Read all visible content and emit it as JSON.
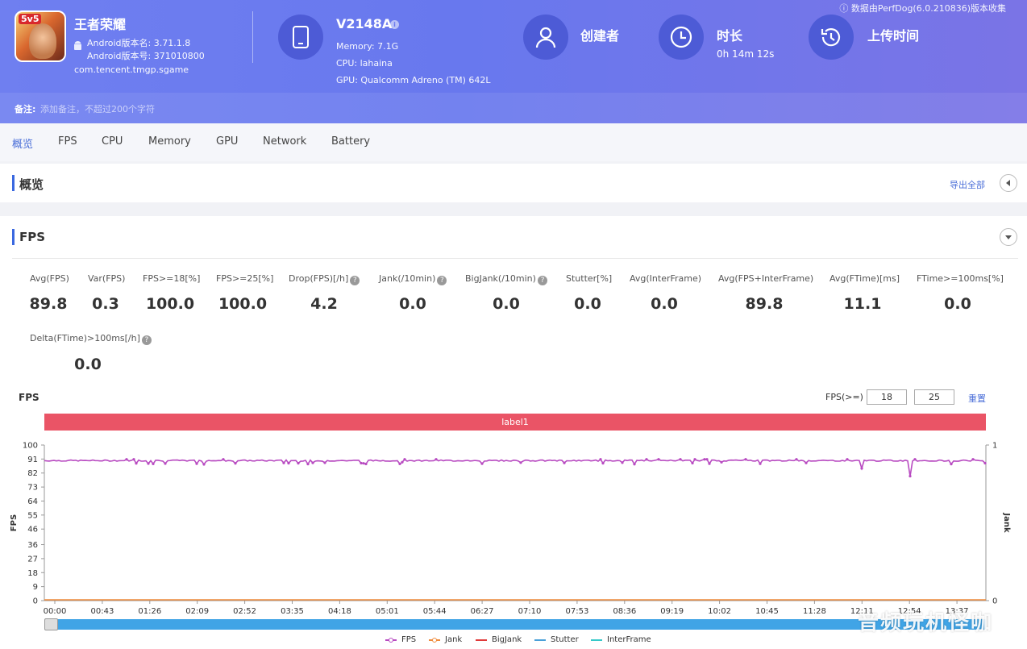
{
  "header": {
    "app_name": "王者荣耀",
    "android_version_name": "Android版本名: 3.71.1.8",
    "android_version_code": "Android版本号: 371010800",
    "package": "com.tencent.tmgp.sgame",
    "device_name": "V2148A",
    "memory": "Memory: 7.1G",
    "cpu": "CPU: lahaina",
    "gpu": "GPU: Qualcomm Adreno (TM) 642L",
    "creator_label": "创建者",
    "duration_label": "时长",
    "duration_value": "0h 14m 12s",
    "upload_label": "上传时间",
    "perfdog_note": "数据由PerfDog(6.0.210836)版本收集",
    "note_label": "备注:",
    "note_placeholder": "添加备注，不超过200个字符"
  },
  "tabs": [
    {
      "label": "概览",
      "active": true
    },
    {
      "label": "FPS"
    },
    {
      "label": "CPU"
    },
    {
      "label": "Memory"
    },
    {
      "label": "GPU"
    },
    {
      "label": "Network"
    },
    {
      "label": "Battery"
    }
  ],
  "overview": {
    "title": "概览",
    "export_label": "导出全部"
  },
  "fps_section": {
    "title": "FPS",
    "metrics": [
      {
        "label": "Avg(FPS)",
        "value": "89.8"
      },
      {
        "label": "Var(FPS)",
        "value": "0.3"
      },
      {
        "label": "FPS>=18[%]",
        "value": "100.0"
      },
      {
        "label": "FPS>=25[%]",
        "value": "100.0"
      },
      {
        "label": "Drop(FPS)[/h]",
        "value": "4.2",
        "help": true
      },
      {
        "label": "Jank(/10min)",
        "value": "0.0",
        "help": true
      },
      {
        "label": "BigJank(/10min)",
        "value": "0.0",
        "help": true
      },
      {
        "label": "Stutter[%]",
        "value": "0.0"
      },
      {
        "label": "Avg(InterFrame)",
        "value": "0.0"
      },
      {
        "label": "Avg(FPS+InterFrame)",
        "value": "89.8"
      },
      {
        "label": "Avg(FTime)[ms]",
        "value": "11.1"
      },
      {
        "label": "FTime>=100ms[%]",
        "value": "0.0"
      },
      {
        "label": "Delta(FTime)>100ms[/h]",
        "value": "0.0",
        "help": true
      }
    ]
  },
  "chart_controls": {
    "title": "FPS",
    "threshold_label": "FPS(>=)",
    "threshold_1": "18",
    "threshold_2": "25",
    "reset_label": "重置",
    "label_bar": "label1"
  },
  "chart_data": {
    "type": "line",
    "ylabel": "FPS",
    "y2label": "Jank",
    "ylim": [
      0,
      100
    ],
    "y_ticks": [
      0,
      9,
      18,
      27,
      36,
      46,
      55,
      64,
      73,
      82,
      91,
      100
    ],
    "y2_ticks": [
      0,
      1
    ],
    "x_ticks": [
      "00:00",
      "00:43",
      "01:26",
      "02:09",
      "02:52",
      "03:35",
      "04:18",
      "05:01",
      "05:44",
      "06:27",
      "07:10",
      "07:53",
      "08:36",
      "09:19",
      "10:02",
      "10:45",
      "11:28",
      "12:11",
      "12:54",
      "13:37"
    ],
    "series": [
      {
        "name": "FPS",
        "color": "#b84bc1",
        "baseline": 90,
        "dips": [
          {
            "t": "12:11",
            "v": 85
          },
          {
            "t": "12:54",
            "v": 80
          },
          {
            "t": "02:09",
            "v": 88
          },
          {
            "t": "06:27",
            "v": 88
          }
        ]
      },
      {
        "name": "Jank",
        "color": "#ef8b3b",
        "values_all": 0
      },
      {
        "name": "BigJank",
        "color": "#e03a3a",
        "values_all": 0
      },
      {
        "name": "Stutter",
        "color": "#4aa0d8",
        "values_all": 0
      },
      {
        "name": "InterFrame",
        "color": "#36c9c9",
        "values_all": 0
      }
    ],
    "grid": false,
    "legend_position": "bottom"
  },
  "watermark": "音频玩机怪咖",
  "colors": {
    "accent": "#4b6fd8",
    "label_bar": "#ea5466",
    "scroll": "#40a4e6"
  }
}
